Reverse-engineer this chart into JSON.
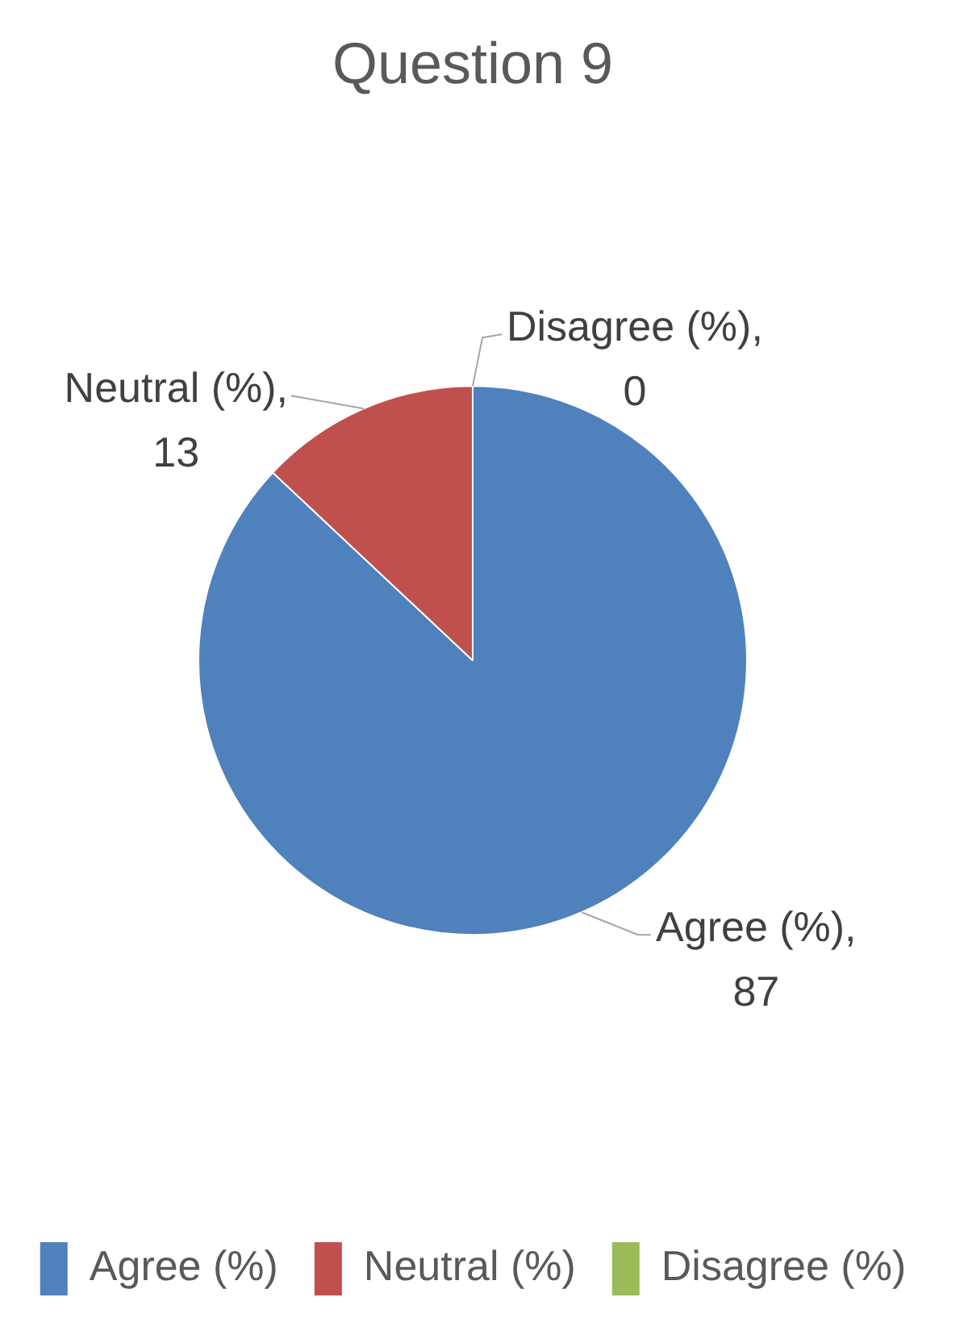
{
  "chart_data": {
    "type": "pie",
    "title": "Question 9",
    "categories": [
      "Agree (%)",
      "Neutral (%)",
      "Disagree (%)"
    ],
    "values": [
      87,
      13,
      0
    ],
    "value_labels": [
      "Agree (%), 87",
      "Neutral (%), 13",
      "Disagree (%), 0"
    ],
    "colors": [
      "#4f81bd",
      "#c0504d",
      "#9bbb59"
    ],
    "legend": "bottom"
  }
}
